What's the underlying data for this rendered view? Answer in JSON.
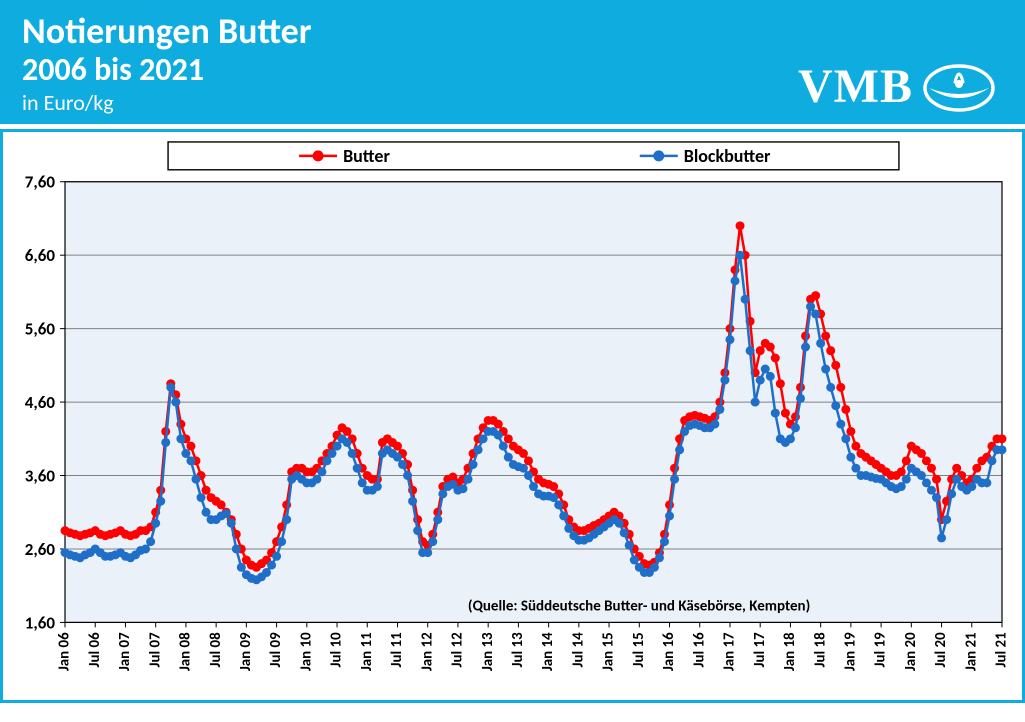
{
  "header": {
    "title": "Notierungen Butter",
    "subtitle": "2006 bis 2021",
    "unit": "in Euro/kg",
    "bg_color": "#0facdf",
    "text_color": "#ffffff",
    "title_fontsize": 36,
    "subtitle_fontsize": 32,
    "unit_fontsize": 22
  },
  "logo": {
    "text": "VMB",
    "color": "#ffffff",
    "fontsize": 48,
    "font_family": "Georgia, serif"
  },
  "chart": {
    "type": "line",
    "background_color": "#ffffff",
    "plot_background_color": "#eaf1f8",
    "grid_color": "#808080",
    "axis_color": "#000000",
    "border_color": "#0facdf",
    "source_note": "(Quelle: Süddeutsche Butter- und Käsebörse, Kempten)",
    "source_fontsize": 15,
    "source_fontweight": "700",
    "legend": {
      "position": "top",
      "border_color": "#000000",
      "bg_color": "#ffffff",
      "fontsize": 18,
      "fontweight": "700"
    },
    "y_axis": {
      "min": 1.6,
      "max": 7.6,
      "tick_step": 1.0,
      "ticks": [
        "1,60",
        "2,60",
        "3,60",
        "4,60",
        "5,60",
        "6,60",
        "7,60"
      ],
      "tick_fontsize": 17,
      "tick_fontweight": "700"
    },
    "x_axis": {
      "labels": [
        "Jan 06",
        "Jul 06",
        "Jan 07",
        "Jul 07",
        "Jan 08",
        "Jul 08",
        "Jan 09",
        "Jul 09",
        "Jan 10",
        "Jul 10",
        "Jan 11",
        "Jul 11",
        "Jan 12",
        "Jul 12",
        "Jan 13",
        "Jul 13",
        "Jan 14",
        "Jul 14",
        "Jan 15",
        "Jul 15",
        "Jan 16",
        "Jul 16",
        "Jan 17",
        "Jul 17",
        "Jan 18",
        "Jul 18",
        "Jan 19",
        "Jul 19",
        "Jan 20",
        "Jul 20",
        "Jan 21",
        "Jul 21"
      ],
      "tick_fontsize": 15,
      "tick_fontweight": "700",
      "rotation": -90
    },
    "series": [
      {
        "name": "Butter",
        "color": "#ff0000",
        "line_width": 2.5,
        "marker_size": 4.5,
        "marker_style": "circle",
        "data": [
          2.85,
          2.82,
          2.8,
          2.78,
          2.8,
          2.82,
          2.85,
          2.8,
          2.78,
          2.8,
          2.82,
          2.85,
          2.8,
          2.78,
          2.8,
          2.85,
          2.85,
          2.9,
          3.1,
          3.4,
          4.2,
          4.85,
          4.7,
          4.3,
          4.1,
          4.0,
          3.8,
          3.6,
          3.4,
          3.3,
          3.25,
          3.2,
          3.1,
          3.0,
          2.8,
          2.6,
          2.45,
          2.38,
          2.35,
          2.4,
          2.45,
          2.55,
          2.7,
          2.9,
          3.2,
          3.65,
          3.7,
          3.7,
          3.65,
          3.65,
          3.7,
          3.8,
          3.9,
          4.0,
          4.15,
          4.25,
          4.2,
          4.1,
          3.9,
          3.7,
          3.6,
          3.55,
          3.55,
          4.05,
          4.1,
          4.05,
          4.0,
          3.9,
          3.75,
          3.4,
          3.0,
          2.7,
          2.65,
          2.8,
          3.1,
          3.45,
          3.55,
          3.58,
          3.5,
          3.55,
          3.7,
          3.9,
          4.1,
          4.25,
          4.35,
          4.35,
          4.3,
          4.2,
          4.1,
          4.0,
          3.95,
          3.9,
          3.8,
          3.65,
          3.55,
          3.5,
          3.48,
          3.45,
          3.35,
          3.2,
          3.0,
          2.9,
          2.85,
          2.85,
          2.88,
          2.92,
          2.95,
          3.0,
          3.05,
          3.1,
          3.05,
          2.95,
          2.8,
          2.6,
          2.5,
          2.4,
          2.38,
          2.42,
          2.55,
          2.8,
          3.2,
          3.7,
          4.1,
          4.35,
          4.4,
          4.42,
          4.4,
          4.38,
          4.35,
          4.4,
          4.6,
          5.0,
          5.6,
          6.4,
          7.0,
          6.6,
          5.7,
          5.0,
          5.3,
          5.4,
          5.35,
          5.2,
          4.85,
          4.45,
          4.3,
          4.4,
          4.8,
          5.5,
          6.0,
          6.05,
          5.8,
          5.5,
          5.3,
          5.1,
          4.8,
          4.5,
          4.2,
          4.0,
          3.9,
          3.85,
          3.8,
          3.75,
          3.7,
          3.65,
          3.6,
          3.6,
          3.65,
          3.8,
          4.0,
          3.95,
          3.9,
          3.8,
          3.7,
          3.55,
          3.0,
          3.25,
          3.55,
          3.7,
          3.6,
          3.5,
          3.55,
          3.7,
          3.8,
          3.85,
          4.0,
          4.1,
          4.1
        ]
      },
      {
        "name": "Blockbutter",
        "color": "#1f6fc9",
        "line_width": 2.5,
        "marker_size": 4.5,
        "marker_style": "circle",
        "data": [
          2.55,
          2.52,
          2.5,
          2.48,
          2.52,
          2.55,
          2.6,
          2.55,
          2.5,
          2.5,
          2.52,
          2.55,
          2.5,
          2.48,
          2.52,
          2.58,
          2.6,
          2.7,
          2.95,
          3.25,
          4.05,
          4.8,
          4.6,
          4.1,
          3.9,
          3.8,
          3.55,
          3.3,
          3.1,
          3.0,
          3.0,
          3.05,
          3.08,
          2.95,
          2.6,
          2.35,
          2.25,
          2.2,
          2.18,
          2.22,
          2.28,
          2.38,
          2.5,
          2.7,
          3.0,
          3.55,
          3.6,
          3.55,
          3.5,
          3.5,
          3.55,
          3.65,
          3.8,
          3.9,
          4.0,
          4.1,
          4.05,
          3.9,
          3.7,
          3.5,
          3.4,
          3.4,
          3.45,
          3.9,
          3.95,
          3.9,
          3.85,
          3.75,
          3.6,
          3.25,
          2.85,
          2.55,
          2.55,
          2.7,
          3.0,
          3.35,
          3.45,
          3.48,
          3.4,
          3.42,
          3.55,
          3.75,
          3.95,
          4.1,
          4.2,
          4.2,
          4.15,
          4.0,
          3.85,
          3.75,
          3.72,
          3.7,
          3.6,
          3.45,
          3.35,
          3.32,
          3.32,
          3.3,
          3.2,
          3.05,
          2.88,
          2.78,
          2.72,
          2.72,
          2.75,
          2.8,
          2.85,
          2.9,
          2.95,
          3.0,
          2.95,
          2.82,
          2.65,
          2.45,
          2.35,
          2.28,
          2.28,
          2.35,
          2.48,
          2.7,
          3.05,
          3.55,
          3.95,
          4.2,
          4.28,
          4.3,
          4.28,
          4.25,
          4.25,
          4.3,
          4.5,
          4.9,
          5.45,
          6.25,
          6.6,
          6.0,
          5.3,
          4.6,
          4.9,
          5.05,
          4.95,
          4.45,
          4.1,
          4.05,
          4.1,
          4.25,
          4.65,
          5.35,
          5.9,
          5.8,
          5.4,
          5.05,
          4.8,
          4.55,
          4.3,
          4.1,
          3.85,
          3.7,
          3.6,
          3.6,
          3.58,
          3.56,
          3.55,
          3.5,
          3.45,
          3.42,
          3.45,
          3.55,
          3.7,
          3.65,
          3.6,
          3.5,
          3.4,
          3.3,
          2.75,
          3.0,
          3.35,
          3.55,
          3.45,
          3.4,
          3.45,
          3.55,
          3.5,
          3.5,
          3.8,
          3.95,
          3.95
        ]
      }
    ]
  }
}
